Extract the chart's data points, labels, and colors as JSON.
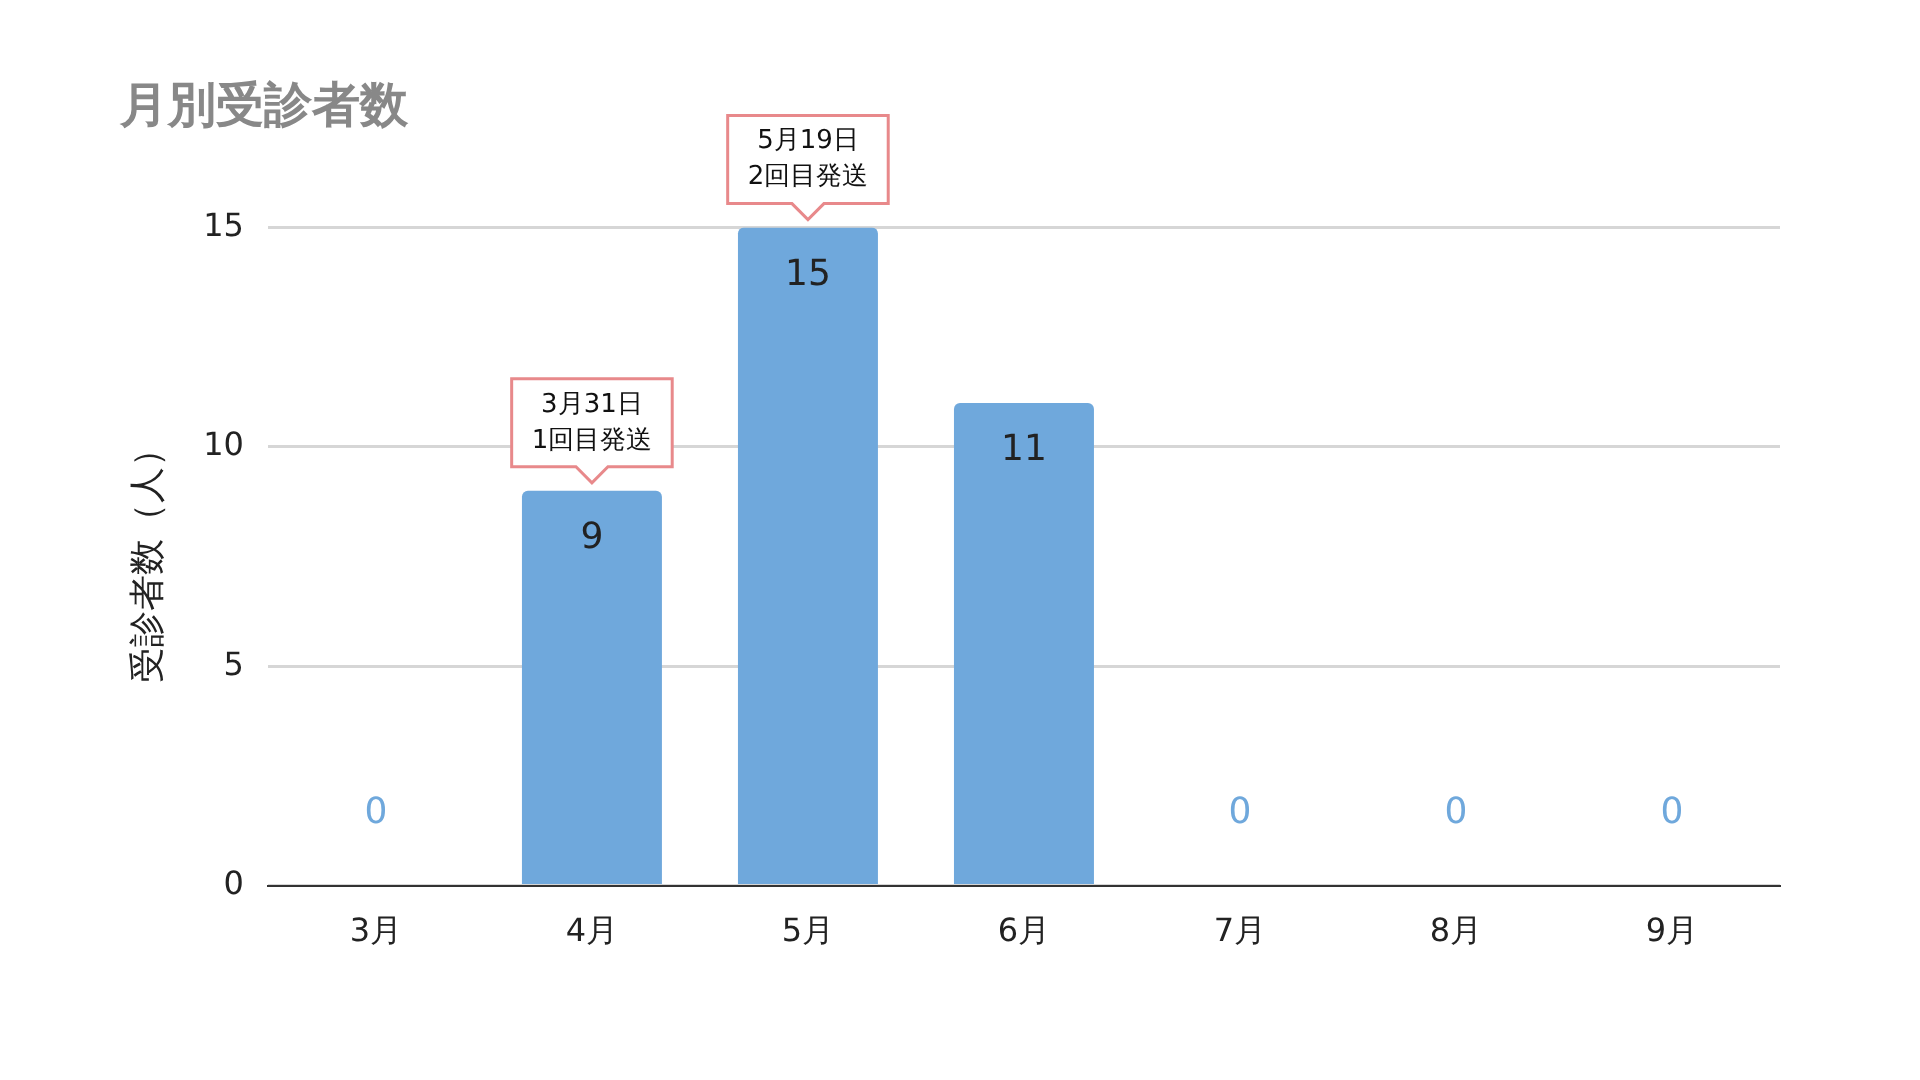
{
  "chart_data": {
    "type": "bar",
    "title": "月別受診者数",
    "ylabel": "受診者数（人）",
    "categories": [
      "3月",
      "4月",
      "5月",
      "6月",
      "7月",
      "8月",
      "9月"
    ],
    "values": [
      0,
      9,
      15,
      11,
      0,
      0,
      0
    ],
    "color": "#6fa8dc",
    "ylim": [
      0,
      15
    ],
    "yticks": [
      0,
      5,
      10,
      15
    ],
    "grid": "y",
    "data_labels": true,
    "annotations": [
      {
        "text": "3月31日\n1回目発送",
        "x": "4月",
        "y": 9
      },
      {
        "text": "5月19日\n2回目発送",
        "x": "5月",
        "y": 15
      }
    ]
  }
}
